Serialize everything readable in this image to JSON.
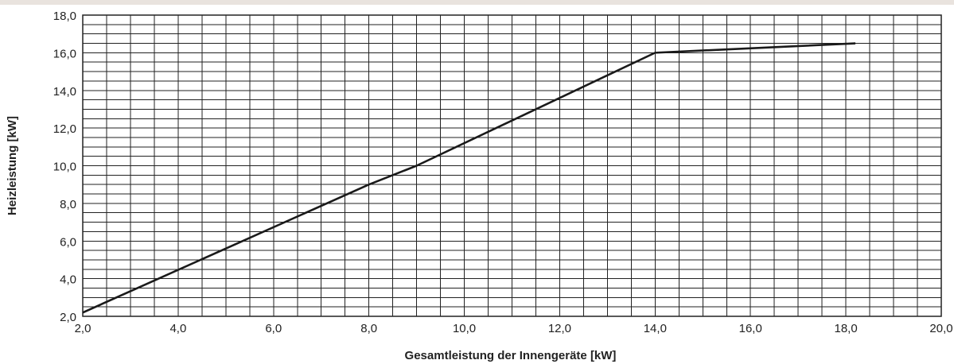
{
  "chart_data": {
    "type": "line",
    "title": "",
    "xlabel": "Gesamtleistung der Innengeräte [kW]",
    "ylabel": "Heizleistung  [kW]",
    "xlim": [
      2.0,
      20.0
    ],
    "ylim": [
      2.0,
      18.0
    ],
    "x_ticks": [
      2.0,
      4.0,
      6.0,
      8.0,
      10.0,
      12.0,
      14.0,
      16.0,
      18.0,
      20.0
    ],
    "x_tick_labels": [
      "2,0",
      "4,0",
      "6,0",
      "8,0",
      "10,0",
      "12,0",
      "14,0",
      "16,0",
      "18,0",
      "20,0"
    ],
    "y_ticks": [
      2.0,
      4.0,
      6.0,
      8.0,
      10.0,
      12.0,
      14.0,
      16.0,
      18.0
    ],
    "y_tick_labels": [
      "2,0",
      "4,0",
      "6,0",
      "8,0",
      "10,0",
      "12,0",
      "14,0",
      "16,0",
      "18,0"
    ],
    "grid": true,
    "x_grid_step": 0.5,
    "y_grid_step": 0.5,
    "series": [
      {
        "x": [
          2.0,
          8.0,
          9.0,
          14.0,
          18.2
        ],
        "y": [
          2.2,
          9.0,
          10.0,
          16.0,
          16.5
        ]
      }
    ],
    "colors": {
      "line": "#1a1a1a",
      "grid": "#222222",
      "frame": "#222222",
      "top_band": "#e9e3de"
    }
  }
}
